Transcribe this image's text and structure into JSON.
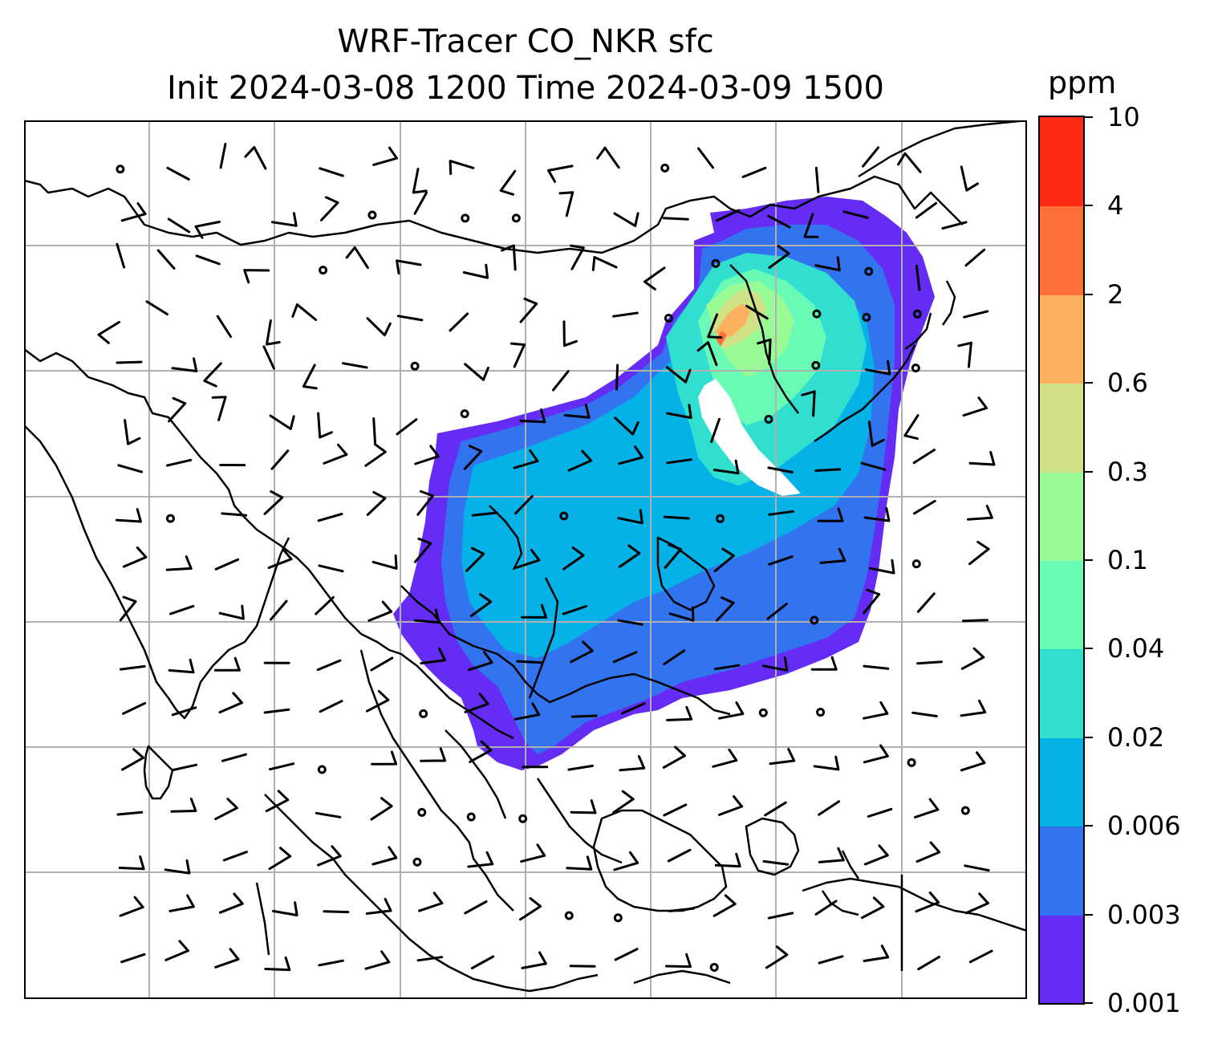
{
  "title": {
    "line1": "WRF-Tracer CO_NKR sfc",
    "line2": "Init 2024-03-08 1200 Time 2024-03-09 1500"
  },
  "colorbar": {
    "unit": "ppm",
    "levels": [
      "0.001",
      "0.003",
      "0.006",
      "0.02",
      "0.04",
      "0.1",
      "0.3",
      "0.6",
      "2",
      "4",
      "10"
    ],
    "colors": [
      "#652cf6",
      "#3274f0",
      "#04b2e7",
      "#31dfd1",
      "#69fbb6",
      "#98fb95",
      "#d0e285",
      "#fdb05e",
      "#fe6f39",
      "#ff2a16"
    ]
  },
  "map": {
    "gridlines": true,
    "coastline_color": "#000000",
    "gridline_color": "#b0b0b0",
    "wind_barb_color": "#000000"
  }
}
